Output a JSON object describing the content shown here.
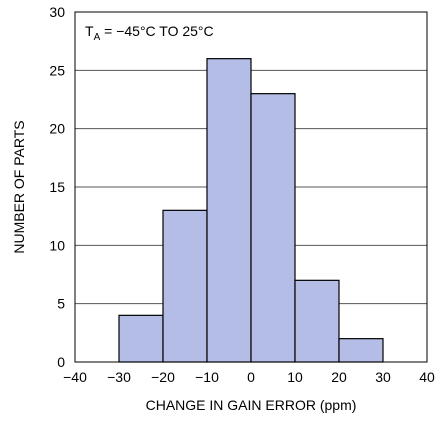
{
  "chart_data": {
    "type": "bar",
    "title": "",
    "xlabel": "CHANGE IN GAIN ERROR (ppm)",
    "ylabel": "NUMBER OF PARTS",
    "annotation": {
      "prefix": "T",
      "subscript": "A",
      "text": " = −45°C TO 25°C"
    },
    "xlim": [
      -40,
      40
    ],
    "ylim": [
      0,
      30
    ],
    "xticks": [
      "−40",
      "−30",
      "−20",
      "−10",
      "0",
      "10",
      "20",
      "30",
      "40"
    ],
    "yticks": [
      "0",
      "5",
      "10",
      "15",
      "20",
      "25",
      "30"
    ],
    "grid": "horizontal",
    "bins": [
      {
        "from": -30,
        "to": -20,
        "value": 4
      },
      {
        "from": -20,
        "to": -10,
        "value": 13
      },
      {
        "from": -10,
        "to": 0,
        "value": 26
      },
      {
        "from": 0,
        "to": 10,
        "value": 23
      },
      {
        "from": 10,
        "to": 20,
        "value": 7
      },
      {
        "from": 20,
        "to": 30,
        "value": 2
      }
    ],
    "bar_color": "#b4bde5",
    "edge_color": "#000000"
  }
}
